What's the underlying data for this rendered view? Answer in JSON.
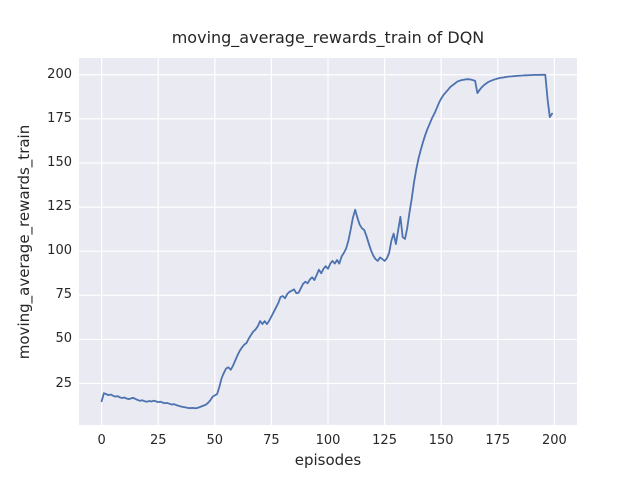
{
  "style": {
    "figure_bg": "#ffffff",
    "axes_bg": "#eaeaf2",
    "grid_color": "#ffffff",
    "text_color": "#262626",
    "line_color": "#4c72b0"
  },
  "chart_data": {
    "type": "line",
    "title": "moving_average_rewards_train of DQN",
    "xlabel": "episodes",
    "ylabel": "moving_average_rewards_train",
    "legend": "none",
    "grid": true,
    "x_ticks": [
      0,
      25,
      50,
      75,
      100,
      125,
      150,
      175,
      200
    ],
    "y_ticks": [
      25,
      50,
      75,
      100,
      125,
      150,
      175,
      200
    ],
    "xlim": [
      -10,
      210
    ],
    "ylim": [
      1.5,
      209.5
    ],
    "line_color": "#4c72b0",
    "x_is_index": true,
    "series": [
      {
        "name": "moving_average_rewards_train",
        "values": [
          15.0,
          19.5,
          19.0,
          18.4,
          18.8,
          18.1,
          17.6,
          17.9,
          17.2,
          16.8,
          17.1,
          16.5,
          16.2,
          16.6,
          16.9,
          16.2,
          15.6,
          15.2,
          15.5,
          15.0,
          14.7,
          15.1,
          14.8,
          15.3,
          14.9,
          14.5,
          14.7,
          14.2,
          13.8,
          14.0,
          13.5,
          13.1,
          13.3,
          12.8,
          12.4,
          12.0,
          11.7,
          11.5,
          11.2,
          11.0,
          11.2,
          11.0,
          11.1,
          11.5,
          12.0,
          12.5,
          13.0,
          14.0,
          15.5,
          17.5,
          18.3,
          19.0,
          23.0,
          28.0,
          31.0,
          33.5,
          34.2,
          32.8,
          35.0,
          38.0,
          41.0,
          43.5,
          45.5,
          47.0,
          48.0,
          50.5,
          52.5,
          54.5,
          55.7,
          57.5,
          60.4,
          58.7,
          60.4,
          58.7,
          60.5,
          63.0,
          65.5,
          68.0,
          70.5,
          74.0,
          74.6,
          73.3,
          75.8,
          77.0,
          77.6,
          78.4,
          76.2,
          76.5,
          79.0,
          81.5,
          82.7,
          81.8,
          84.0,
          85.2,
          83.7,
          86.5,
          89.5,
          87.5,
          90.0,
          91.5,
          90.0,
          93.0,
          94.5,
          93.0,
          95.0,
          93.0,
          97.0,
          99.0,
          101.5,
          106.0,
          112.0,
          119.0,
          123.5,
          119.0,
          115.0,
          113.0,
          112.0,
          108.5,
          104.5,
          100.5,
          97.5,
          95.5,
          94.5,
          96.5,
          95.5,
          94.5,
          96.0,
          99.0,
          106.0,
          110.0,
          104.0,
          112.0,
          119.5,
          108.0,
          107.0,
          113.0,
          122.0,
          130.0,
          139.0,
          146.5,
          152.5,
          157.5,
          162.0,
          166.0,
          169.5,
          172.5,
          175.5,
          178.0,
          181.0,
          184.0,
          186.5,
          188.5,
          190.0,
          191.5,
          193.0,
          194.0,
          195.0,
          196.0,
          196.6,
          197.0,
          197.2,
          197.4,
          197.5,
          197.3,
          197.0,
          196.6,
          189.6,
          191.5,
          193.0,
          194.2,
          195.2,
          196.0,
          196.6,
          197.1,
          197.5,
          197.9,
          198.2,
          198.4,
          198.6,
          198.8,
          199.0,
          199.1,
          199.2,
          199.3,
          199.4,
          199.5,
          199.6,
          199.7,
          199.7,
          199.8,
          199.8,
          199.9,
          199.9,
          199.9,
          200.0,
          200.0,
          200.0,
          186.0,
          176.0,
          178.0
        ]
      }
    ]
  }
}
